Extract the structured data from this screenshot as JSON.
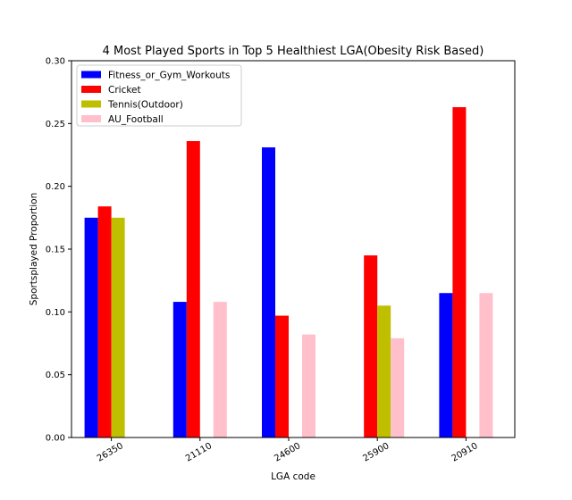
{
  "chart_data": {
    "type": "bar",
    "title": "4 Most Played Sports in Top 5 Healthiest LGA(Obesity Risk Based)",
    "xlabel": "LGA code",
    "ylabel": "Sportsplayed Proportion",
    "ylim": [
      0,
      0.3
    ],
    "yticks": [
      "0.00",
      "0.05",
      "0.10",
      "0.15",
      "0.20",
      "0.25",
      "0.30"
    ],
    "categories": [
      "26350",
      "21110",
      "24600",
      "25900",
      "20910"
    ],
    "legend_position": "top-left",
    "grid": false,
    "series": [
      {
        "name": "Fitness_or_Gym_Workouts",
        "color": "#0000ff",
        "values": [
          0.175,
          0.108,
          0.231,
          0,
          0.115
        ]
      },
      {
        "name": "Cricket",
        "color": "#ff0000",
        "values": [
          0.184,
          0.236,
          0.097,
          0.145,
          0.263
        ]
      },
      {
        "name": "Tennis(Outdoor)",
        "color": "#bfbf00",
        "values": [
          0.175,
          0,
          0,
          0.105,
          0
        ]
      },
      {
        "name": "AU_Football",
        "color": "#ffc0cb",
        "values": [
          0,
          0.108,
          0.082,
          0.079,
          0.115
        ]
      }
    ]
  }
}
